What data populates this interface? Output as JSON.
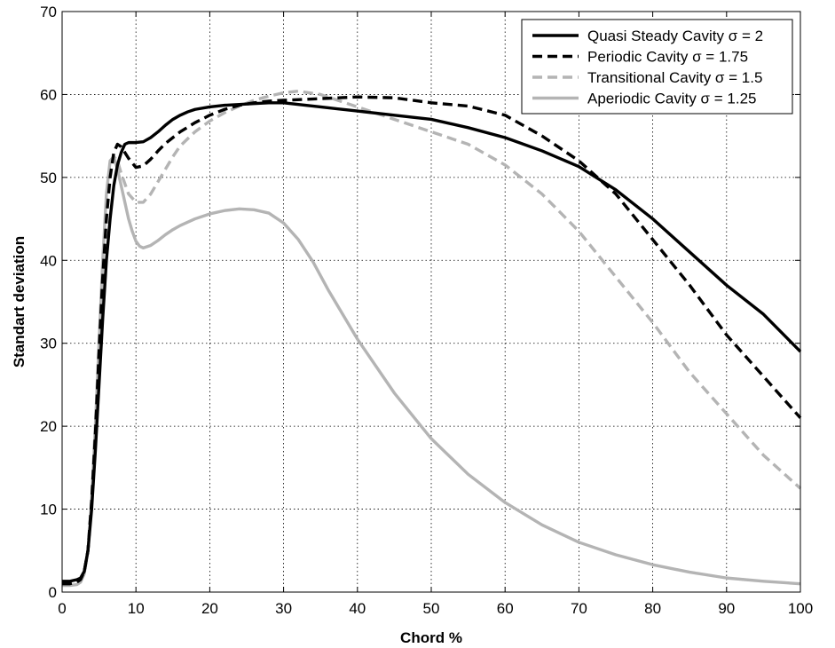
{
  "chart_data": {
    "type": "line",
    "xlabel": "Chord %",
    "ylabel": "Standart deviation",
    "xlim": [
      0,
      100
    ],
    "ylim": [
      0,
      70
    ],
    "xticks": [
      0,
      10,
      20,
      30,
      40,
      50,
      60,
      70,
      80,
      90,
      100
    ],
    "yticks": [
      0,
      10,
      20,
      30,
      40,
      50,
      60,
      70
    ],
    "grid": true,
    "legend_position": "top-right",
    "series": [
      {
        "name": "Quasi Steady Cavity σ = 2",
        "color": "#000000",
        "style": "solid",
        "x": [
          0,
          1,
          2,
          2.5,
          3,
          3.5,
          4,
          4.5,
          5,
          5.5,
          6,
          6.5,
          7,
          7.5,
          8,
          8.5,
          9,
          10,
          11,
          12,
          13,
          14,
          15,
          16,
          17,
          18,
          20,
          22,
          24,
          26,
          28,
          30,
          35,
          40,
          45,
          50,
          55,
          60,
          65,
          70,
          75,
          80,
          85,
          90,
          95,
          100
        ],
        "y": [
          1.3,
          1.3,
          1.5,
          1.7,
          2.5,
          5,
          10,
          17,
          25,
          33,
          40,
          45,
          49,
          51.5,
          53,
          54,
          54.2,
          54.2,
          54.3,
          54.8,
          55.5,
          56.3,
          57,
          57.5,
          57.9,
          58.2,
          58.5,
          58.7,
          58.8,
          58.9,
          59,
          59,
          58.5,
          58,
          57.5,
          57,
          56,
          54.8,
          53.2,
          51.3,
          48.5,
          45,
          41,
          37,
          33.5,
          29
        ]
      },
      {
        "name": "Periodic Cavity σ = 1.75",
        "color": "#000000",
        "style": "dashed",
        "x": [
          0,
          1,
          2,
          2.5,
          3,
          3.5,
          4,
          4.5,
          5,
          5.5,
          6,
          6.5,
          7,
          7.5,
          8,
          9,
          10,
          11,
          12,
          13,
          14,
          16,
          18,
          20,
          22,
          24,
          26,
          28,
          30,
          35,
          40,
          45,
          50,
          55,
          60,
          65,
          70,
          75,
          80,
          85,
          90,
          95,
          100
        ],
        "y": [
          1,
          1,
          1.2,
          1.5,
          2.5,
          5,
          11,
          19,
          29,
          38,
          45,
          50,
          53,
          54,
          53.7,
          52.3,
          51.2,
          51.4,
          52.2,
          53.2,
          54.1,
          55.5,
          56.6,
          57.5,
          58.2,
          58.7,
          59,
          59.2,
          59.3,
          59.5,
          59.7,
          59.6,
          59,
          58.6,
          57.5,
          55,
          52,
          48,
          42.5,
          37,
          31,
          26,
          21
        ]
      },
      {
        "name": "Transitional Cavity σ = 1.5",
        "color": "#b4b4b4",
        "style": "dashed",
        "x": [
          0,
          1,
          2,
          2.5,
          3,
          3.5,
          4,
          4.5,
          5,
          5.5,
          6,
          6.5,
          7,
          7.5,
          8,
          9,
          10,
          11,
          12,
          13,
          14,
          15,
          16,
          18,
          20,
          22,
          24,
          26,
          28,
          30,
          32,
          35,
          40,
          45,
          50,
          55,
          60,
          65,
          70,
          75,
          80,
          85,
          90,
          95,
          100
        ],
        "y": [
          1,
          1,
          1.2,
          1.5,
          2.5,
          5,
          11,
          20,
          30,
          39,
          46,
          50.5,
          52.5,
          52,
          50.5,
          48,
          47,
          47,
          48,
          49.5,
          51,
          52.5,
          53.8,
          55.5,
          56.8,
          57.8,
          58.6,
          59.3,
          59.8,
          60.2,
          60.4,
          60,
          58.5,
          57,
          55.5,
          54,
          51.5,
          48,
          43.5,
          38,
          32.5,
          26.5,
          21.5,
          16.5,
          12.5
        ]
      },
      {
        "name": "Aperiodic Cavity σ = 1.25",
        "color": "#b4b4b4",
        "style": "solid",
        "x": [
          0,
          1,
          2,
          2.5,
          3,
          3.5,
          4,
          4.5,
          5,
          5.5,
          6,
          6.5,
          7,
          7.5,
          8,
          8.5,
          9,
          9.5,
          10,
          10.5,
          11,
          12,
          13,
          14,
          15,
          16,
          18,
          20,
          22,
          24,
          26,
          28,
          30,
          32,
          34,
          36,
          38,
          40,
          45,
          50,
          55,
          60,
          65,
          70,
          75,
          80,
          85,
          90,
          95,
          100
        ],
        "y": [
          0.8,
          0.8,
          0.9,
          1.2,
          2.2,
          5,
          11,
          20,
          30,
          40,
          48,
          52,
          52.5,
          51,
          49,
          47,
          45,
          43.5,
          42.3,
          41.7,
          41.5,
          41.8,
          42.4,
          43.1,
          43.7,
          44.2,
          45,
          45.6,
          46,
          46.2,
          46.1,
          45.7,
          44.5,
          42.5,
          39.8,
          36.5,
          33.5,
          30.5,
          24,
          18.5,
          14.2,
          10.8,
          8.1,
          6,
          4.5,
          3.3,
          2.4,
          1.7,
          1.3,
          1
        ]
      }
    ]
  }
}
